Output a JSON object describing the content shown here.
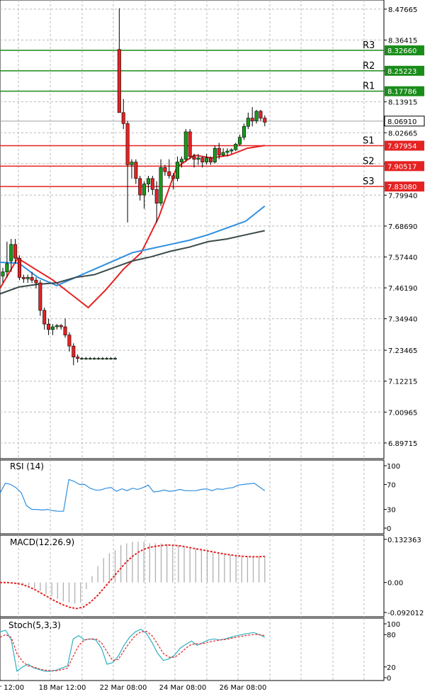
{
  "chart_data": {
    "type": "candlestick",
    "main": {
      "y_ticks": [
        "8.47665",
        "8.36415",
        "8.25223",
        "8.13915",
        "8.02665",
        "7.91415",
        "7.79940",
        "7.68690",
        "7.57440",
        "7.46190",
        "7.34940",
        "7.23465",
        "7.12215",
        "7.00965",
        "6.89715"
      ],
      "current_price": "8.06910",
      "levels": [
        {
          "name": "R3",
          "value": "8.32660",
          "color": "#1a8c1a"
        },
        {
          "name": "R2",
          "value": "8.25223",
          "color": "#1a8c1a"
        },
        {
          "name": "R1",
          "value": "8.17786",
          "color": "#1a8c1a"
        },
        {
          "name": "S1",
          "value": "7.97954",
          "color": "#e52222"
        },
        {
          "name": "S2",
          "value": "7.90517",
          "color": "#e52222"
        },
        {
          "name": "S3",
          "value": "7.83080",
          "color": "#e52222"
        }
      ],
      "ylim": [
        6.84,
        8.51
      ],
      "candle_up_color": "#1a9a1a",
      "candle_down_color": "#e52222",
      "candles": [
        [
          7.505,
          7.535,
          7.48,
          7.52
        ],
        [
          7.52,
          7.63,
          7.5,
          7.55
        ],
        [
          7.56,
          7.64,
          7.52,
          7.62
        ],
        [
          7.62,
          7.64,
          7.55,
          7.57
        ],
        [
          7.57,
          7.58,
          7.49,
          7.5
        ],
        [
          7.5,
          7.51,
          7.48,
          7.495
        ],
        [
          7.495,
          7.51,
          7.48,
          7.5
        ],
        [
          7.5,
          7.52,
          7.48,
          7.49
        ],
        [
          7.49,
          7.5,
          7.46,
          7.48
        ],
        [
          7.48,
          7.49,
          7.36,
          7.38
        ],
        [
          7.38,
          7.39,
          7.31,
          7.33
        ],
        [
          7.33,
          7.35,
          7.29,
          7.31
        ],
        [
          7.31,
          7.33,
          7.29,
          7.32
        ],
        [
          7.32,
          7.33,
          7.31,
          7.325
        ],
        [
          7.325,
          7.33,
          7.31,
          7.32
        ],
        [
          7.32,
          7.35,
          7.28,
          7.29
        ],
        [
          7.29,
          7.3,
          7.23,
          7.25
        ],
        [
          7.25,
          7.26,
          7.18,
          7.21
        ],
        [
          7.21,
          7.22,
          7.19,
          7.205
        ],
        [
          7.205,
          7.21,
          7.2,
          7.205
        ],
        [
          7.205,
          7.21,
          7.2,
          7.205
        ],
        [
          7.205,
          7.21,
          7.2,
          7.205
        ],
        [
          7.205,
          7.21,
          7.2,
          7.205
        ],
        [
          7.205,
          7.21,
          7.2,
          7.205
        ],
        [
          7.205,
          7.21,
          7.2,
          7.205
        ],
        [
          7.205,
          7.21,
          7.2,
          7.205
        ],
        [
          7.205,
          7.21,
          7.2,
          7.205
        ],
        [
          7.205,
          7.21,
          7.2,
          7.205
        ],
        [
          8.33,
          8.48,
          8.1,
          8.1
        ],
        [
          8.1,
          8.15,
          8.04,
          8.06
        ],
        [
          8.06,
          8.07,
          7.7,
          7.91
        ],
        [
          7.91,
          7.93,
          7.86,
          7.92
        ],
        [
          7.92,
          7.93,
          7.84,
          7.86
        ],
        [
          7.86,
          7.87,
          7.78,
          7.8
        ],
        [
          7.8,
          7.85,
          7.75,
          7.84
        ],
        [
          7.84,
          7.87,
          7.81,
          7.86
        ],
        [
          7.86,
          7.87,
          7.8,
          7.82
        ],
        [
          7.82,
          7.85,
          7.7,
          7.77
        ],
        [
          7.77,
          7.93,
          7.76,
          7.9
        ],
        [
          7.9,
          7.91,
          7.87,
          7.885
        ],
        [
          7.885,
          7.93,
          7.86,
          7.87
        ],
        [
          7.87,
          7.88,
          7.82,
          7.86
        ],
        [
          7.86,
          7.94,
          7.85,
          7.92
        ],
        [
          7.92,
          7.94,
          7.9,
          7.93
        ],
        [
          7.93,
          8.04,
          7.92,
          8.03
        ],
        [
          8.03,
          8.04,
          7.93,
          7.94
        ],
        [
          7.94,
          7.95,
          7.9,
          7.93
        ],
        [
          7.93,
          7.95,
          7.91,
          7.935
        ],
        [
          7.935,
          7.94,
          7.9,
          7.92
        ],
        [
          7.92,
          7.95,
          7.91,
          7.935
        ],
        [
          7.935,
          7.94,
          7.91,
          7.92
        ],
        [
          7.92,
          7.98,
          7.915,
          7.97
        ],
        [
          7.97,
          7.99,
          7.93,
          7.945
        ],
        [
          7.945,
          7.97,
          7.94,
          7.955
        ],
        [
          7.955,
          7.97,
          7.94,
          7.96
        ],
        [
          7.96,
          7.97,
          7.95,
          7.965
        ],
        [
          7.965,
          7.99,
          7.96,
          7.985
        ],
        [
          7.985,
          8.02,
          7.98,
          8.01
        ],
        [
          8.01,
          8.06,
          8.0,
          8.05
        ],
        [
          8.05,
          8.1,
          8.04,
          8.08
        ],
        [
          8.08,
          8.12,
          8.05,
          8.07
        ],
        [
          8.07,
          8.11,
          8.06,
          8.105
        ],
        [
          8.105,
          8.11,
          8.07,
          8.08
        ],
        [
          8.08,
          8.09,
          8.05,
          8.065
        ]
      ],
      "series": [
        {
          "values": [
            7.46,
            7.57,
            7.53,
            7.49,
            7.44,
            7.39,
            7.455,
            7.53,
            7.59,
            7.72,
            7.9,
            7.945,
            7.935,
            7.945,
            7.97,
            7.98
          ],
          "color": "#e52222"
        },
        {
          "values": [
            7.555,
            7.552,
            7.5,
            7.47,
            7.5,
            7.53,
            7.56,
            7.59,
            7.605,
            7.62,
            7.635,
            7.655,
            7.68,
            7.705,
            7.76
          ],
          "color": "#2f8fe0"
        },
        {
          "values": [
            7.44,
            7.465,
            7.475,
            7.48,
            7.5,
            7.51,
            7.535,
            7.56,
            7.575,
            7.595,
            7.61,
            7.63,
            7.64,
            7.655,
            7.67
          ],
          "color": "#3c4a4a"
        }
      ]
    },
    "x_ticks": [
      "r 12:00",
      "18 Mar 12:00",
      "22 Mar 08:00",
      "24 Mar 08:00",
      "26 Mar 08:00"
    ],
    "rsi": {
      "title": "RSI (14)",
      "y_ticks": [
        "100",
        "70",
        "30",
        "0"
      ],
      "ylim": [
        0,
        100
      ],
      "color": "#2f8fe0",
      "values": [
        56,
        72,
        70,
        65,
        57,
        36,
        30,
        30,
        29,
        30,
        28,
        27,
        27,
        78,
        75,
        70,
        70,
        64,
        61,
        61,
        64,
        65,
        59,
        63,
        60,
        64,
        62,
        65,
        69,
        58,
        59,
        61,
        59,
        60,
        62,
        60,
        60,
        60,
        62,
        63,
        60,
        63,
        62,
        64,
        65,
        69,
        70,
        71,
        72,
        66,
        60
      ]
    },
    "macd": {
      "title": "MACD(12.26.9)",
      "y_ticks": [
        "0.132363",
        "0.00",
        "-0.092012"
      ],
      "ylim": [
        -0.105,
        0.145
      ],
      "bar_color": "#b0b0b0",
      "signal_color": "#e52222",
      "bars": [
        0,
        0,
        -0.002,
        -0.004,
        -0.006,
        -0.01,
        -0.018,
        -0.026,
        -0.034,
        -0.042,
        -0.05,
        -0.058,
        -0.062,
        -0.065,
        -0.062,
        -0.02,
        0.02,
        0.05,
        0.075,
        0.09,
        0.1,
        0.115,
        0.12,
        0.125,
        0.125,
        0.125,
        0.12,
        0.12,
        0.12,
        0.118,
        0.116,
        0.114,
        0.11,
        0.108,
        0.104,
        0.1,
        0.096,
        0.092,
        0.088,
        0.086,
        0.084,
        0.082,
        0.08,
        0.078,
        0.078,
        0.08,
        0.082
      ],
      "signal": [
        0,
        0,
        -0.002,
        -0.005,
        -0.012,
        -0.022,
        -0.034,
        -0.046,
        -0.058,
        -0.068,
        -0.076,
        -0.08,
        -0.075,
        -0.06,
        -0.04,
        -0.015,
        0.01,
        0.035,
        0.06,
        0.08,
        0.095,
        0.105,
        0.11,
        0.113,
        0.115,
        0.114,
        0.112,
        0.108,
        0.104,
        0.1,
        0.096,
        0.092,
        0.088,
        0.085,
        0.082,
        0.08,
        0.079,
        0.079,
        0.08
      ]
    },
    "stoch": {
      "title": "Stoch(5,3,3)",
      "y_ticks": [
        "100",
        "80",
        "20",
        "0"
      ],
      "ylim": [
        0,
        100
      ],
      "k_color": "#2fb0c0",
      "d_color": "#e52222",
      "k": [
        85,
        88,
        70,
        12,
        20,
        25,
        18,
        15,
        12,
        12,
        14,
        18,
        22,
        72,
        78,
        70,
        72,
        70,
        55,
        25,
        28,
        40,
        60,
        75,
        85,
        90,
        82,
        65,
        45,
        32,
        35,
        42,
        55,
        62,
        68,
        60,
        65,
        70,
        72,
        70,
        72,
        75,
        78,
        80,
        82,
        84,
        80,
        75
      ],
      "d": [
        75,
        80,
        75,
        45,
        30,
        22,
        20,
        16,
        14,
        13,
        13,
        15,
        18,
        40,
        60,
        70,
        72,
        72,
        65,
        48,
        32,
        34,
        50,
        65,
        78,
        85,
        86,
        78,
        62,
        45,
        38,
        38,
        45,
        55,
        62,
        63,
        63,
        66,
        68,
        70,
        71,
        73,
        75,
        77,
        79,
        80,
        80,
        78
      ]
    }
  }
}
